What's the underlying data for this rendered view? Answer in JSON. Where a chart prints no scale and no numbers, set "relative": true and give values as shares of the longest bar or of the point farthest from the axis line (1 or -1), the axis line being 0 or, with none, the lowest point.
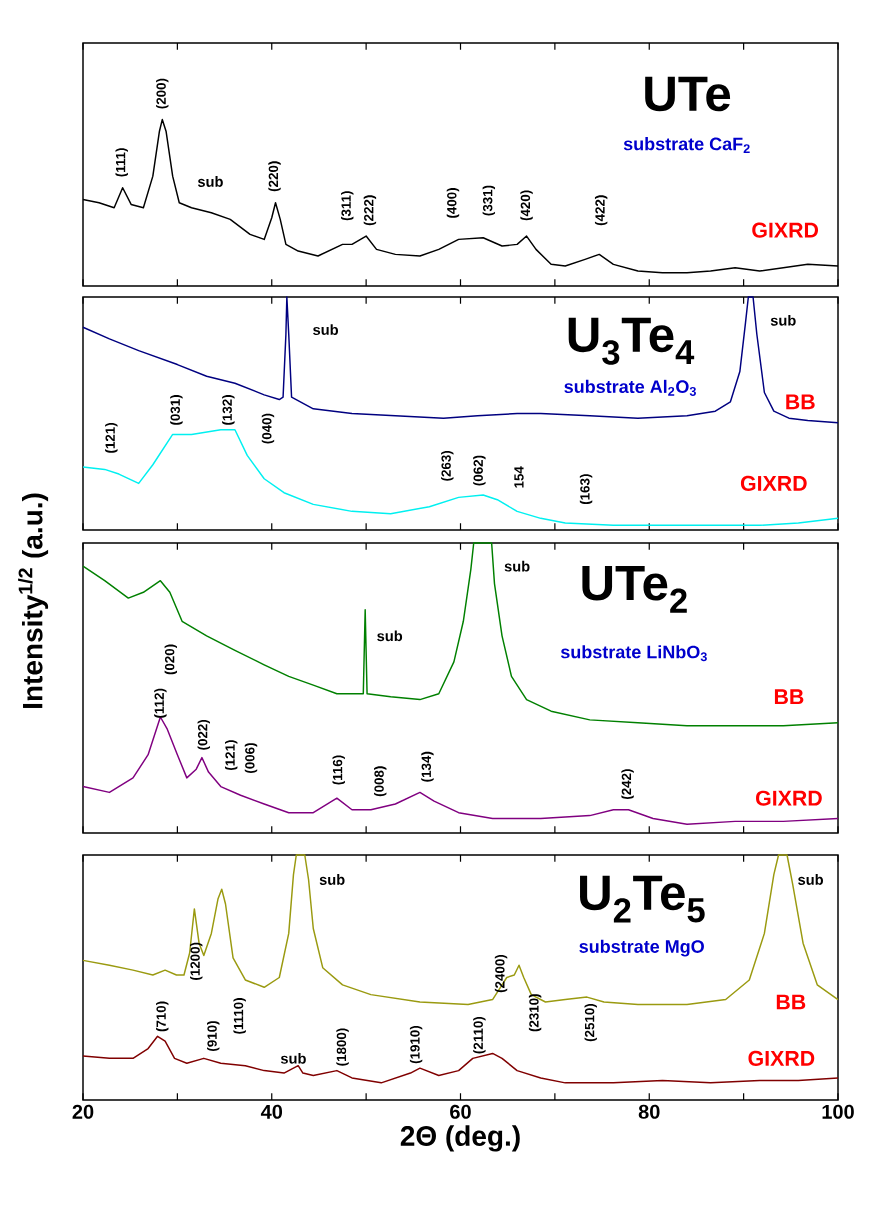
{
  "chart_data": [
    {
      "type": "line",
      "title": "UTe",
      "subtitle": "substrate CaF$_{2}$",
      "relative": true,
      "tick_labels": false,
      "xlim": [
        20,
        100
      ],
      "xticks": [
        20,
        {
          "value": 30,
          "label": null
        },
        40,
        {
          "value": 50,
          "label": null
        },
        60,
        {
          "value": 70,
          "label": null
        },
        80,
        {
          "value": 90,
          "label": null
        },
        100
      ],
      "series": [
        {
          "name": "GIXRD",
          "color": "#000000",
          "x": [
            20,
            21.7,
            23.3,
            24.2,
            25.1,
            26.4,
            27.4,
            28.1,
            28.4,
            28.8,
            29.5,
            30.2,
            31.5,
            33.6,
            35.6,
            37.7,
            39.2,
            40.0,
            40.4,
            40.9,
            41.5,
            42.8,
            44.9,
            47.5,
            48.5,
            50.0,
            51.1,
            53.1,
            55.7,
            57.7,
            59.8,
            62.4,
            64.4,
            66.0,
            67.0,
            68.0,
            69.6,
            71.1,
            73.2,
            74.7,
            76.2,
            78.8,
            81.4,
            84.0,
            86.5,
            89.1,
            91.7,
            94.2,
            96.8,
            100
          ],
          "values": [
            0.52,
            0.5,
            0.47,
            0.59,
            0.49,
            0.47,
            0.66,
            0.93,
            1.0,
            0.93,
            0.66,
            0.5,
            0.47,
            0.44,
            0.4,
            0.31,
            0.28,
            0.41,
            0.5,
            0.4,
            0.25,
            0.21,
            0.18,
            0.25,
            0.25,
            0.3,
            0.22,
            0.19,
            0.18,
            0.22,
            0.28,
            0.29,
            0.24,
            0.25,
            0.3,
            0.22,
            0.13,
            0.12,
            0.16,
            0.19,
            0.13,
            0.09,
            0.08,
            0.08,
            0.09,
            0.11,
            0.09,
            0.11,
            0.13,
            0.12
          ]
        }
      ],
      "annotations": [
        "(111)",
        "(200)",
        "(220)",
        "(311)",
        "(222)",
        "(400)",
        "(331)",
        "(420)",
        "(422)",
        "sub"
      ]
    },
    {
      "type": "line",
      "title": "U$_{3}$Te$_{4}$",
      "subtitle": "substrate Al$_{2}$O$_{3}$",
      "relative": true,
      "tick_labels": false,
      "xlim": [
        20,
        100
      ],
      "xticks": [
        20,
        {
          "value": 30,
          "label": null
        },
        40,
        {
          "value": 50,
          "label": null
        },
        60,
        {
          "value": 70,
          "label": null
        },
        80,
        {
          "value": 90,
          "label": null
        },
        100
      ],
      "series": [
        {
          "name": "BB",
          "color": "#000080",
          "x": [
            20,
            22.8,
            25.9,
            30.0,
            33.1,
            36.1,
            39.2,
            40.8,
            41.2,
            41.5,
            41.6,
            41.8,
            42.1,
            44.4,
            48.5,
            53.1,
            58.2,
            61.8,
            66.0,
            68.5,
            73.7,
            78.8,
            84.0,
            87.0,
            88.6,
            89.6,
            90.2,
            90.5,
            91.0,
            91.4,
            92.2,
            93.2,
            94.8,
            96.8,
            100
          ],
          "values": [
            0.87,
            0.82,
            0.77,
            0.71,
            0.66,
            0.63,
            0.58,
            0.56,
            0.57,
            0.84,
            1,
            0.84,
            0.57,
            0.52,
            0.5,
            0.49,
            0.48,
            0.49,
            0.5,
            0.5,
            0.49,
            0.48,
            0.49,
            0.51,
            0.55,
            0.68,
            0.89,
            1,
            1,
            0.84,
            0.59,
            0.51,
            0.48,
            0.47,
            0.46
          ]
        },
        {
          "name": "GIXRD",
          "color": "#00f0f0",
          "x": [
            20,
            22.3,
            23.8,
            25.9,
            27.4,
            29.5,
            31.5,
            34.6,
            36.1,
            37.4,
            39.2,
            41.3,
            44.4,
            48.5,
            52.6,
            56.7,
            59.8,
            62.4,
            63.9,
            66.0,
            68.5,
            71.1,
            76.2,
            81.4,
            86.5,
            91.7,
            95.8,
            100
          ],
          "values": [
            0.27,
            0.26,
            0.24,
            0.2,
            0.28,
            0.41,
            0.41,
            0.43,
            0.43,
            0.32,
            0.22,
            0.16,
            0.11,
            0.08,
            0.07,
            0.1,
            0.14,
            0.15,
            0.13,
            0.08,
            0.05,
            0.03,
            0.02,
            0.02,
            0.02,
            0.02,
            0.03,
            0.05
          ]
        }
      ],
      "annotations": [
        "(121)",
        "(031)",
        "(132)",
        "(040)",
        "(263)",
        "(062)",
        "154",
        "(163)",
        "sub",
        "sub"
      ]
    },
    {
      "type": "line",
      "title": "UTe$_{2}$",
      "subtitle": "substrate LiNbO$_{3}$",
      "ylabel": "Intensity$^{1/2}$ (a.u.)",
      "relative": true,
      "tick_labels": false,
      "xlim": [
        20,
        100
      ],
      "xticks": [
        20,
        {
          "value": 30,
          "label": null
        },
        40,
        {
          "value": 50,
          "label": null
        },
        60,
        {
          "value": 70,
          "label": null
        },
        80,
        {
          "value": 90,
          "label": null
        },
        100
      ],
      "series": [
        {
          "name": "BB",
          "color": "#008000",
          "x": [
            20,
            22.3,
            24.8,
            26.4,
            28.2,
            29.2,
            30.5,
            33.1,
            36.1,
            39.2,
            41.8,
            44.4,
            46.9,
            49.7,
            49.9,
            50.1,
            52.6,
            55.7,
            57.7,
            59.3,
            60.3,
            61.1,
            61.4,
            63.3,
            63.6,
            64.4,
            65.4,
            67.0,
            69.6,
            73.7,
            78.8,
            84.0,
            89.1,
            94.2,
            100
          ],
          "values": [
            0.92,
            0.87,
            0.81,
            0.83,
            0.87,
            0.83,
            0.73,
            0.68,
            0.63,
            0.58,
            0.54,
            0.51,
            0.48,
            0.48,
            0.77,
            0.48,
            0.47,
            0.46,
            0.48,
            0.59,
            0.73,
            0.91,
            1,
            1,
            0.86,
            0.68,
            0.54,
            0.46,
            0.42,
            0.39,
            0.38,
            0.37,
            0.37,
            0.37,
            0.38
          ]
        },
        {
          "name": "GIXRD",
          "color": "#800080",
          "x": [
            20,
            22.8,
            25.3,
            26.9,
            28.2,
            28.9,
            30.0,
            31.0,
            32.0,
            32.6,
            33.3,
            34.6,
            36.7,
            39.2,
            41.8,
            44.4,
            46.9,
            48.5,
            50.5,
            53.1,
            55.7,
            57.2,
            59.8,
            63.4,
            68.5,
            73.7,
            76.2,
            77.8,
            80.4,
            84.0,
            89.1,
            94.2,
            100
          ],
          "values": [
            0.16,
            0.14,
            0.19,
            0.27,
            0.4,
            0.36,
            0.27,
            0.19,
            0.22,
            0.26,
            0.21,
            0.16,
            0.13,
            0.1,
            0.07,
            0.07,
            0.12,
            0.08,
            0.08,
            0.1,
            0.14,
            0.11,
            0.07,
            0.05,
            0.05,
            0.06,
            0.08,
            0.08,
            0.05,
            0.03,
            0.04,
            0.04,
            0.05
          ]
        }
      ],
      "annotations": [
        "(112)",
        "(020)",
        "(022)",
        "(121)",
        "(006)",
        "(116)",
        "(008)",
        "(134)",
        "(242)",
        "sub",
        "sub"
      ]
    },
    {
      "type": "line",
      "title": "U$_{2}$Te$_{5}$",
      "subtitle": "substrate MgO",
      "xlabel": "2Θ (deg.)",
      "relative": true,
      "tick_labels": "x",
      "xlim": [
        20,
        100
      ],
      "xticks": [
        20,
        {
          "value": 30,
          "label": null
        },
        40,
        {
          "value": 50,
          "label": null
        },
        60,
        {
          "value": 70,
          "label": null
        },
        80,
        {
          "value": 90,
          "label": null
        },
        100
      ],
      "series": [
        {
          "name": "BB",
          "color": "#9a9a10",
          "x": [
            20,
            22.8,
            25.3,
            27.4,
            28.7,
            29.9,
            30.7,
            31.3,
            31.8,
            32.3,
            32.8,
            33.6,
            34.3,
            34.7,
            35.1,
            35.9,
            37.2,
            39.2,
            40.8,
            41.8,
            42.3,
            42.6,
            43.5,
            43.9,
            44.4,
            45.4,
            47.5,
            50.5,
            55.7,
            60.8,
            63.4,
            64.4,
            64.9,
            65.7,
            66.2,
            66.7,
            67.5,
            69.0,
            71.1,
            73.4,
            75.2,
            78.8,
            84.0,
            88.1,
            90.6,
            92.2,
            93.2,
            93.7,
            94.6,
            95.2,
            96.3,
            97.8,
            100
          ],
          "values": [
            0.57,
            0.55,
            0.53,
            0.51,
            0.53,
            0.51,
            0.51,
            0.6,
            0.78,
            0.64,
            0.59,
            0.68,
            0.82,
            0.86,
            0.8,
            0.58,
            0.49,
            0.46,
            0.5,
            0.68,
            0.92,
            1,
            1,
            0.9,
            0.7,
            0.54,
            0.47,
            0.43,
            0.4,
            0.39,
            0.41,
            0.47,
            0.5,
            0.51,
            0.55,
            0.5,
            0.43,
            0.4,
            0.41,
            0.42,
            0.4,
            0.39,
            0.39,
            0.41,
            0.49,
            0.68,
            0.92,
            1,
            1,
            0.88,
            0.64,
            0.47,
            0.41
          ]
        },
        {
          "name": "GIXRD",
          "color": "#800000",
          "x": [
            20,
            22.8,
            25.3,
            26.9,
            27.9,
            28.7,
            29.7,
            31.0,
            32.8,
            34.6,
            37.2,
            39.2,
            41.3,
            42.8,
            43.3,
            44.4,
            46.9,
            48.5,
            51.6,
            54.7,
            55.7,
            57.7,
            59.8,
            61.3,
            63.4,
            64.4,
            66.0,
            68.5,
            71.1,
            76.2,
            81.4,
            86.5,
            91.7,
            95.8,
            100
          ],
          "values": [
            0.18,
            0.17,
            0.17,
            0.21,
            0.26,
            0.24,
            0.17,
            0.15,
            0.17,
            0.15,
            0.14,
            0.12,
            0.11,
            0.14,
            0.11,
            0.1,
            0.12,
            0.09,
            0.07,
            0.11,
            0.13,
            0.1,
            0.12,
            0.17,
            0.19,
            0.17,
            0.12,
            0.09,
            0.07,
            0.07,
            0.08,
            0.07,
            0.08,
            0.08,
            0.09
          ]
        }
      ],
      "annotations": [
        "(710)",
        "(1200)",
        "(910)",
        "(1110)",
        "(1800)",
        "(1910)",
        "(2110)",
        "(2400)",
        "(2310)",
        "(2510)",
        "sub",
        "sub",
        "sub"
      ]
    }
  ]
}
